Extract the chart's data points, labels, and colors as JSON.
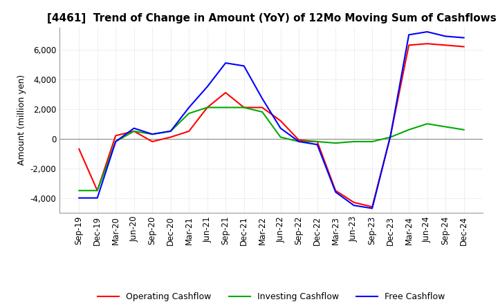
{
  "title": "[4461]  Trend of Change in Amount (YoY) of 12Mo Moving Sum of Cashflows",
  "ylabel": "Amount (million yen)",
  "x_labels": [
    "Sep-19",
    "Dec-19",
    "Mar-20",
    "Jun-20",
    "Sep-20",
    "Dec-20",
    "Mar-21",
    "Jun-21",
    "Sep-21",
    "Dec-21",
    "Mar-22",
    "Jun-22",
    "Sep-22",
    "Dec-22",
    "Mar-23",
    "Jun-23",
    "Sep-23",
    "Dec-23",
    "Mar-24",
    "Jun-24",
    "Sep-24",
    "Dec-24"
  ],
  "operating": [
    -700,
    -3500,
    200,
    500,
    -200,
    100,
    500,
    2100,
    3100,
    2100,
    2100,
    1200,
    -100,
    -200,
    -3500,
    -4300,
    -4600,
    200,
    6300,
    6400,
    6300,
    6200
  ],
  "investing": [
    -3500,
    -3500,
    -200,
    500,
    300,
    500,
    1700,
    2100,
    2100,
    2100,
    1800,
    100,
    -200,
    -200,
    -300,
    -200,
    -200,
    100,
    600,
    1000,
    800,
    600
  ],
  "free": [
    -4000,
    -4000,
    -200,
    700,
    300,
    500,
    2100,
    3500,
    5100,
    4900,
    2700,
    700,
    -200,
    -400,
    -3600,
    -4500,
    -4700,
    200,
    7000,
    7200,
    6900,
    6800
  ],
  "operating_color": "#ff0000",
  "investing_color": "#00aa00",
  "free_color": "#0000ff",
  "ylim": [
    -5000,
    7500
  ],
  "yticks": [
    -4000,
    -2000,
    0,
    2000,
    4000,
    6000
  ],
  "background_color": "#ffffff",
  "grid_color": "#cccccc",
  "title_fontsize": 11,
  "label_fontsize": 9,
  "tick_fontsize": 8.5
}
